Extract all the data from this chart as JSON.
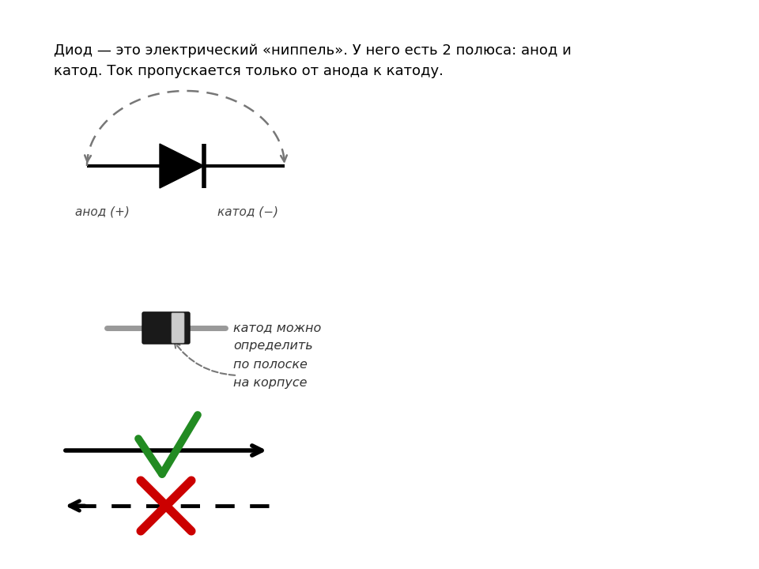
{
  "bg_color": "#ffffff",
  "text_intro": "Диод — это электрический «ниппель». У него есть 2 полюса: анод и\nкатод. Ток пропускается только от анода к катоду.",
  "text_anode": "анод (+)",
  "text_cathode": "катод (−)",
  "text_cathode_note": "катод можно\nопределить\nпо полоске\nна корпусе",
  "dashed_color": "#777777",
  "green_color": "#228B22",
  "red_color": "#cc0000",
  "black": "#000000"
}
